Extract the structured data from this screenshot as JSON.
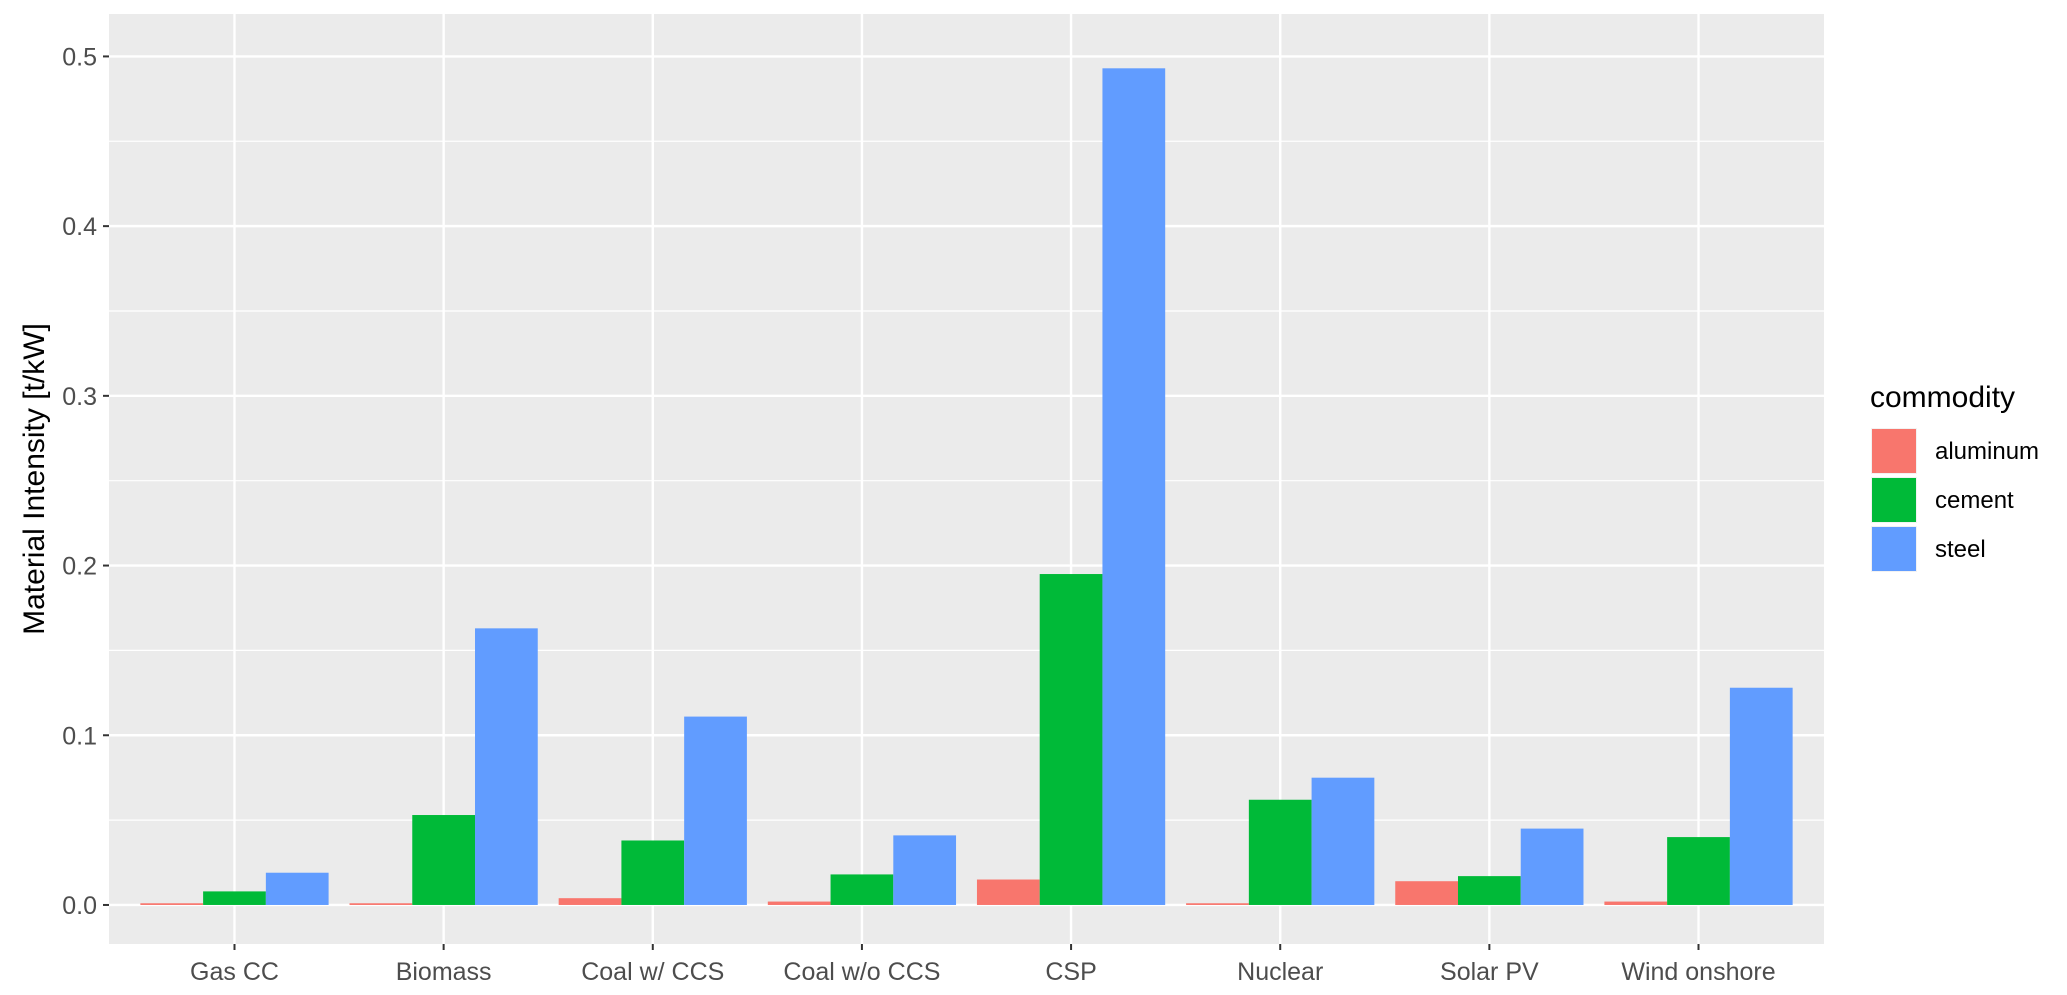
{
  "chart_data": {
    "type": "bar",
    "categories": [
      "Gas CC",
      "Biomass",
      "Coal w/ CCS",
      "Coal w/o CCS",
      "CSP",
      "Nuclear",
      "Solar PV",
      "Wind onshore"
    ],
    "series": [
      {
        "name": "aluminum",
        "color": "#F8766D",
        "values": [
          0.001,
          0.001,
          0.004,
          0.002,
          0.015,
          0.001,
          0.014,
          0.002
        ]
      },
      {
        "name": "cement",
        "color": "#00BA38",
        "values": [
          0.008,
          0.053,
          0.038,
          0.018,
          0.195,
          0.062,
          0.017,
          0.04
        ]
      },
      {
        "name": "steel",
        "color": "#619CFF",
        "values": [
          0.019,
          0.163,
          0.111,
          0.041,
          0.493,
          0.075,
          0.045,
          0.128
        ]
      }
    ],
    "xlabel": "",
    "ylabel": "Material Intensity [t/kW]",
    "ylim": [
      -0.023,
      0.525
    ],
    "yticks": [
      0.0,
      0.1,
      0.2,
      0.3,
      0.4,
      0.5
    ],
    "ytick_labels": [
      "0.0",
      "0.1",
      "0.2",
      "0.3",
      "0.4",
      "0.5"
    ],
    "grid": true,
    "legend": {
      "title": "commodity",
      "position": "right"
    },
    "panel_background": "#EBEBEB",
    "grid_color": "#FFFFFF"
  }
}
